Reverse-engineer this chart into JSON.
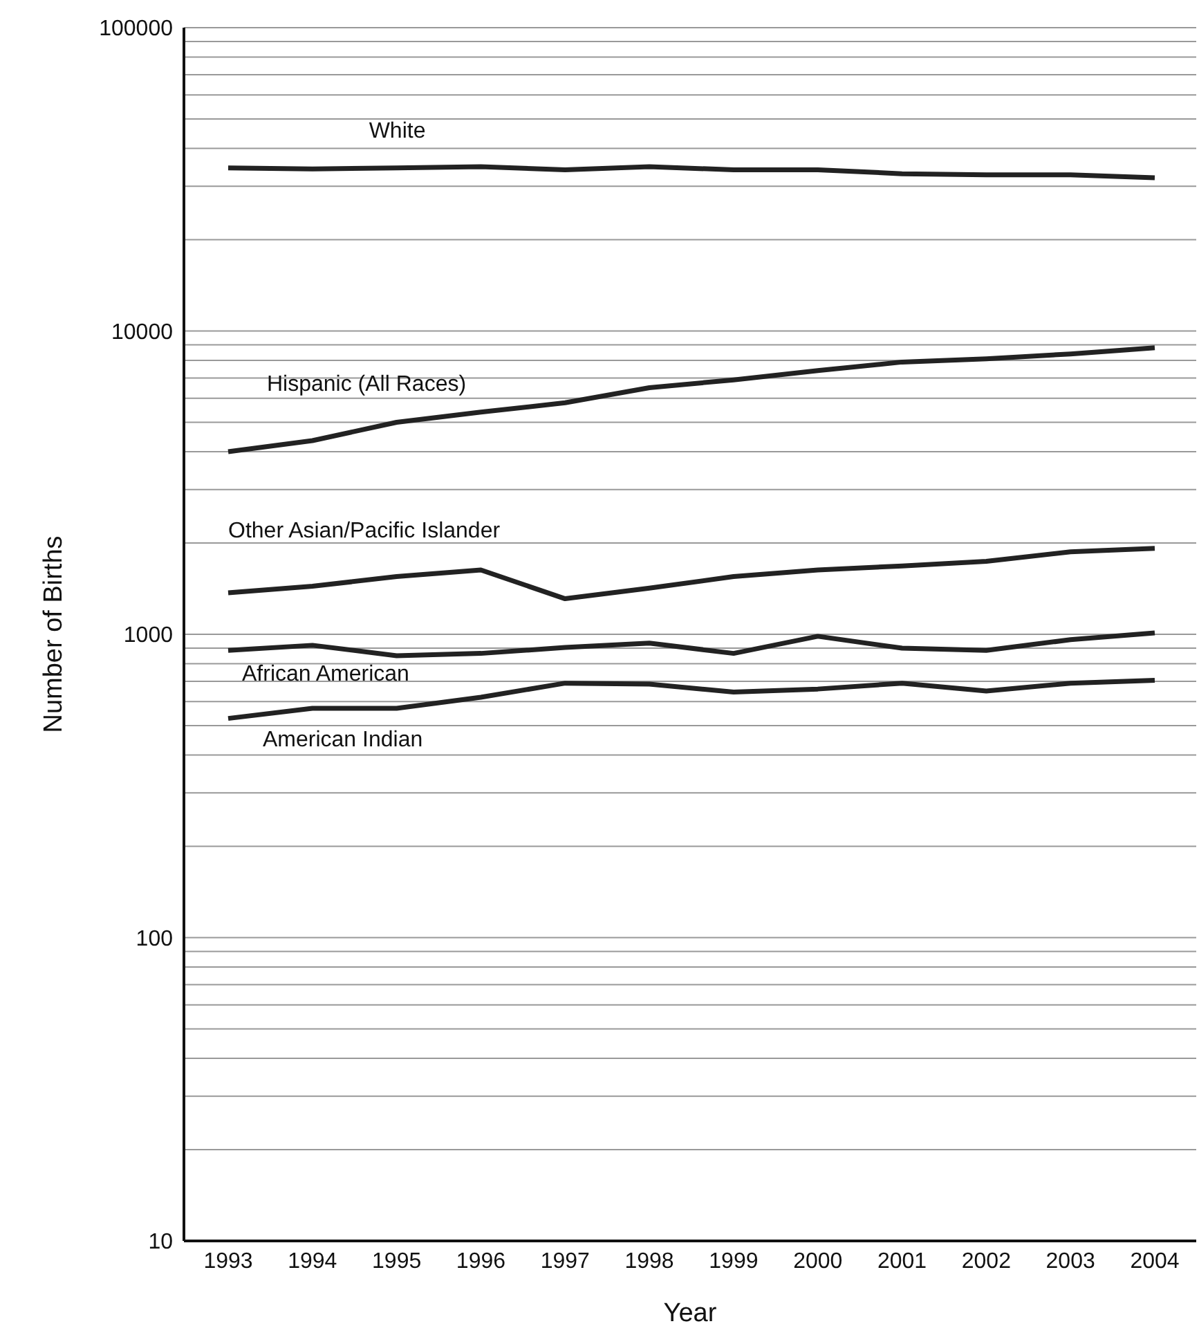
{
  "chart_data": {
    "type": "line",
    "xlabel": "Year",
    "ylabel": "Number of Births",
    "log": "y",
    "grid": "y",
    "legend": false,
    "marker": "none",
    "line_style": "solid",
    "categories": [
      "1993",
      "1994",
      "1995",
      "1996",
      "1997",
      "1998",
      "1999",
      "2000",
      "2001",
      "2002",
      "2003",
      "2004"
    ],
    "ylim": [
      10,
      100000
    ],
    "yticks": [
      10,
      {
        "value": 20,
        "label": null
      },
      {
        "value": 30,
        "label": null
      },
      {
        "value": 40,
        "label": null
      },
      {
        "value": 50,
        "label": null
      },
      {
        "value": 60,
        "label": null
      },
      {
        "value": 70,
        "label": null
      },
      {
        "value": 80,
        "label": null
      },
      {
        "value": 90,
        "label": null
      },
      100,
      {
        "value": 200,
        "label": null
      },
      {
        "value": 300,
        "label": null
      },
      {
        "value": 400,
        "label": null
      },
      {
        "value": 500,
        "label": null
      },
      {
        "value": 600,
        "label": null
      },
      {
        "value": 700,
        "label": null
      },
      {
        "value": 800,
        "label": null
      },
      {
        "value": 900,
        "label": null
      },
      1000,
      {
        "value": 2000,
        "label": null
      },
      {
        "value": 3000,
        "label": null
      },
      {
        "value": 4000,
        "label": null
      },
      {
        "value": 5000,
        "label": null
      },
      {
        "value": 6000,
        "label": null
      },
      {
        "value": 7000,
        "label": null
      },
      {
        "value": 8000,
        "label": null
      },
      {
        "value": 9000,
        "label": null
      },
      10000,
      {
        "value": 20000,
        "label": null
      },
      {
        "value": 30000,
        "label": null
      },
      {
        "value": 40000,
        "label": null
      },
      {
        "value": 50000,
        "label": null
      },
      {
        "value": 60000,
        "label": null
      },
      {
        "value": 70000,
        "label": null
      },
      {
        "value": 80000,
        "label": null
      },
      {
        "value": 90000,
        "label": null
      },
      100000
    ],
    "series": [
      {
        "name": "White",
        "color": "#222222",
        "values": [
          34500,
          34200,
          34500,
          34800,
          34000,
          34800,
          34000,
          34000,
          33000,
          32700,
          32700,
          32000
        ]
      },
      {
        "name": "Hispanic (All Races)",
        "color": "#222222",
        "values": [
          4000,
          4350,
          5000,
          5400,
          5800,
          6500,
          6900,
          7400,
          7900,
          8100,
          8400,
          8800
        ]
      },
      {
        "name": "Other Asian/Pacific Islander",
        "color": "#222222",
        "values": [
          1370,
          1440,
          1550,
          1630,
          1310,
          1420,
          1550,
          1630,
          1680,
          1740,
          1870,
          1920
        ]
      },
      {
        "name": "African American",
        "color": "#222222",
        "values": [
          885,
          920,
          850,
          865,
          905,
          935,
          865,
          985,
          900,
          885,
          960,
          1010
        ]
      },
      {
        "name": "American Indian",
        "color": "#222222",
        "values": [
          528,
          570,
          570,
          620,
          690,
          685,
          645,
          660,
          690,
          650,
          690,
          705
        ]
      }
    ]
  }
}
